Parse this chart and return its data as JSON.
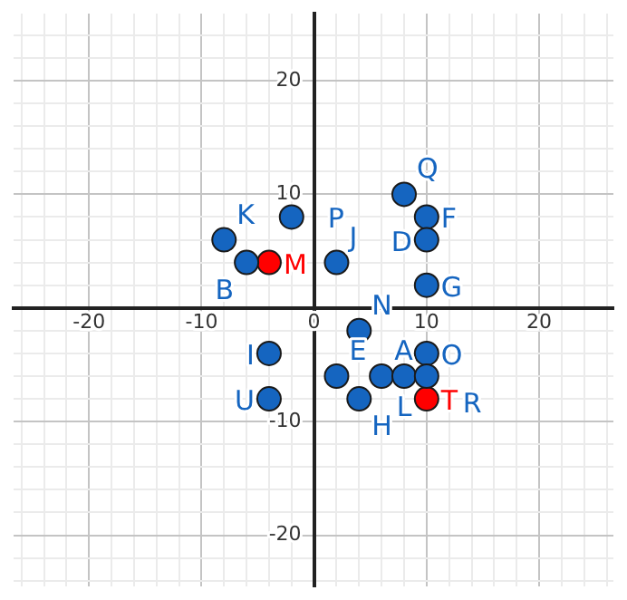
{
  "chart_data": {
    "type": "scatter",
    "xlim": [
      -26.7,
      26.6
    ],
    "ylim": [
      -24.5,
      25.9
    ],
    "xticks": [
      {
        "value": -26,
        "label": null
      },
      {
        "value": -24,
        "label": null
      },
      {
        "value": -22,
        "label": null
      },
      -20,
      {
        "value": -18,
        "label": null
      },
      {
        "value": -16,
        "label": null
      },
      {
        "value": -14,
        "label": null
      },
      {
        "value": -12,
        "label": null
      },
      -10,
      {
        "value": -8,
        "label": null
      },
      {
        "value": -6,
        "label": null
      },
      {
        "value": -4,
        "label": null
      },
      {
        "value": -2,
        "label": null
      },
      0,
      {
        "value": 2,
        "label": null
      },
      {
        "value": 4,
        "label": null
      },
      {
        "value": 6,
        "label": null
      },
      {
        "value": 8,
        "label": null
      },
      10,
      {
        "value": 12,
        "label": null
      },
      {
        "value": 14,
        "label": null
      },
      {
        "value": 16,
        "label": null
      },
      {
        "value": 18,
        "label": null
      },
      20,
      {
        "value": 22,
        "label": null
      },
      {
        "value": 24,
        "label": null
      },
      {
        "value": 26,
        "label": null
      }
    ],
    "yticks": [
      {
        "value": -24,
        "label": null
      },
      {
        "value": -22,
        "label": null
      },
      -20,
      {
        "value": -18,
        "label": null
      },
      {
        "value": -16,
        "label": null
      },
      {
        "value": -14,
        "label": null
      },
      {
        "value": -12,
        "label": null
      },
      -10,
      {
        "value": -8,
        "label": null
      },
      {
        "value": -6,
        "label": null
      },
      {
        "value": -4,
        "label": null
      },
      {
        "value": -2,
        "label": null
      },
      {
        "value": 0,
        "label": null
      },
      {
        "value": 2,
        "label": null
      },
      {
        "value": 4,
        "label": null
      },
      {
        "value": 6,
        "label": null
      },
      {
        "value": 8,
        "label": null
      },
      10,
      {
        "value": 12,
        "label": null
      },
      {
        "value": 14,
        "label": null
      },
      {
        "value": 16,
        "label": null
      },
      {
        "value": 18,
        "label": null
      },
      20,
      {
        "value": 22,
        "label": null
      },
      {
        "value": 24,
        "label": null
      }
    ],
    "grid": true,
    "marker": "circle",
    "series": [
      {
        "color": "#1565c0",
        "x": [
          -8,
          -6,
          -2,
          2,
          8,
          10,
          10,
          10,
          4,
          -4,
          -4,
          2,
          4,
          6,
          8,
          10,
          10
        ],
        "values": [
          6,
          4,
          8,
          4,
          10,
          8,
          6,
          2,
          -2,
          -4,
          -8,
          -6,
          -8,
          -6,
          -6,
          -4,
          -6
        ]
      },
      {
        "color": "#ff0000",
        "x": [
          -4,
          10
        ],
        "values": [
          4,
          -8
        ]
      }
    ],
    "annotations": [
      {
        "text": "K",
        "x": -8,
        "y": 6
      },
      {
        "text": "B",
        "x": -6,
        "y": 4
      },
      {
        "text": "P",
        "x": -2,
        "y": 8
      },
      {
        "text": "J",
        "x": 2,
        "y": 4
      },
      {
        "text": "Q",
        "x": 8,
        "y": 10
      },
      {
        "text": "F",
        "x": 10,
        "y": 8
      },
      {
        "text": "D",
        "x": 10,
        "y": 6
      },
      {
        "text": "G",
        "x": 10,
        "y": 2
      },
      {
        "text": "N",
        "x": 4,
        "y": -2
      },
      {
        "text": "I",
        "x": -4,
        "y": -4
      },
      {
        "text": "U",
        "x": -4,
        "y": -8
      },
      {
        "text": "E",
        "x": 2,
        "y": -6
      },
      {
        "text": "H",
        "x": 4,
        "y": -8
      },
      {
        "text": "A",
        "x": 6,
        "y": -6
      },
      {
        "text": "L",
        "x": 8,
        "y": -6
      },
      {
        "text": "O",
        "x": 10,
        "y": -4
      },
      {
        "text": "R",
        "x": 10,
        "y": -6
      },
      {
        "text": "M",
        "x": -4,
        "y": 4
      },
      {
        "text": "T",
        "x": 10,
        "y": -8
      }
    ]
  }
}
